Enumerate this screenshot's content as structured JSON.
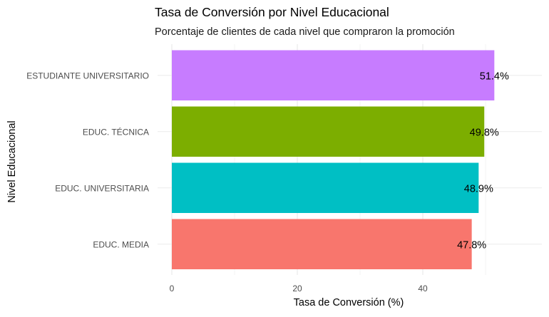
{
  "chart_data": {
    "type": "bar",
    "orientation": "horizontal",
    "title": "Tasa de Conversión por Nivel Educacional",
    "subtitle": "Porcentaje de clientes de cada nivel que compraron la promoción",
    "xlabel": "Tasa de Conversión (%)",
    "ylabel": "Nivel Educacional",
    "categories": [
      "EDUC. MEDIA",
      "EDUC. UNIVERSITARIA",
      "EDUC. TÉCNICA",
      "ESTUDIANTE UNIVERSITARIO"
    ],
    "values": [
      47.8,
      48.9,
      49.8,
      51.4
    ],
    "value_labels": [
      "47.8%",
      "48.9%",
      "49.8%",
      "51.4%"
    ],
    "colors": [
      "#F8766D",
      "#00BFC4",
      "#7CAE00",
      "#C77CFF"
    ],
    "xlim": [
      0,
      58
    ],
    "x_ticks": [
      0,
      20,
      40
    ],
    "x_tick_labels": [
      "0",
      "20",
      "40"
    ],
    "grid": true,
    "legend": "none"
  }
}
